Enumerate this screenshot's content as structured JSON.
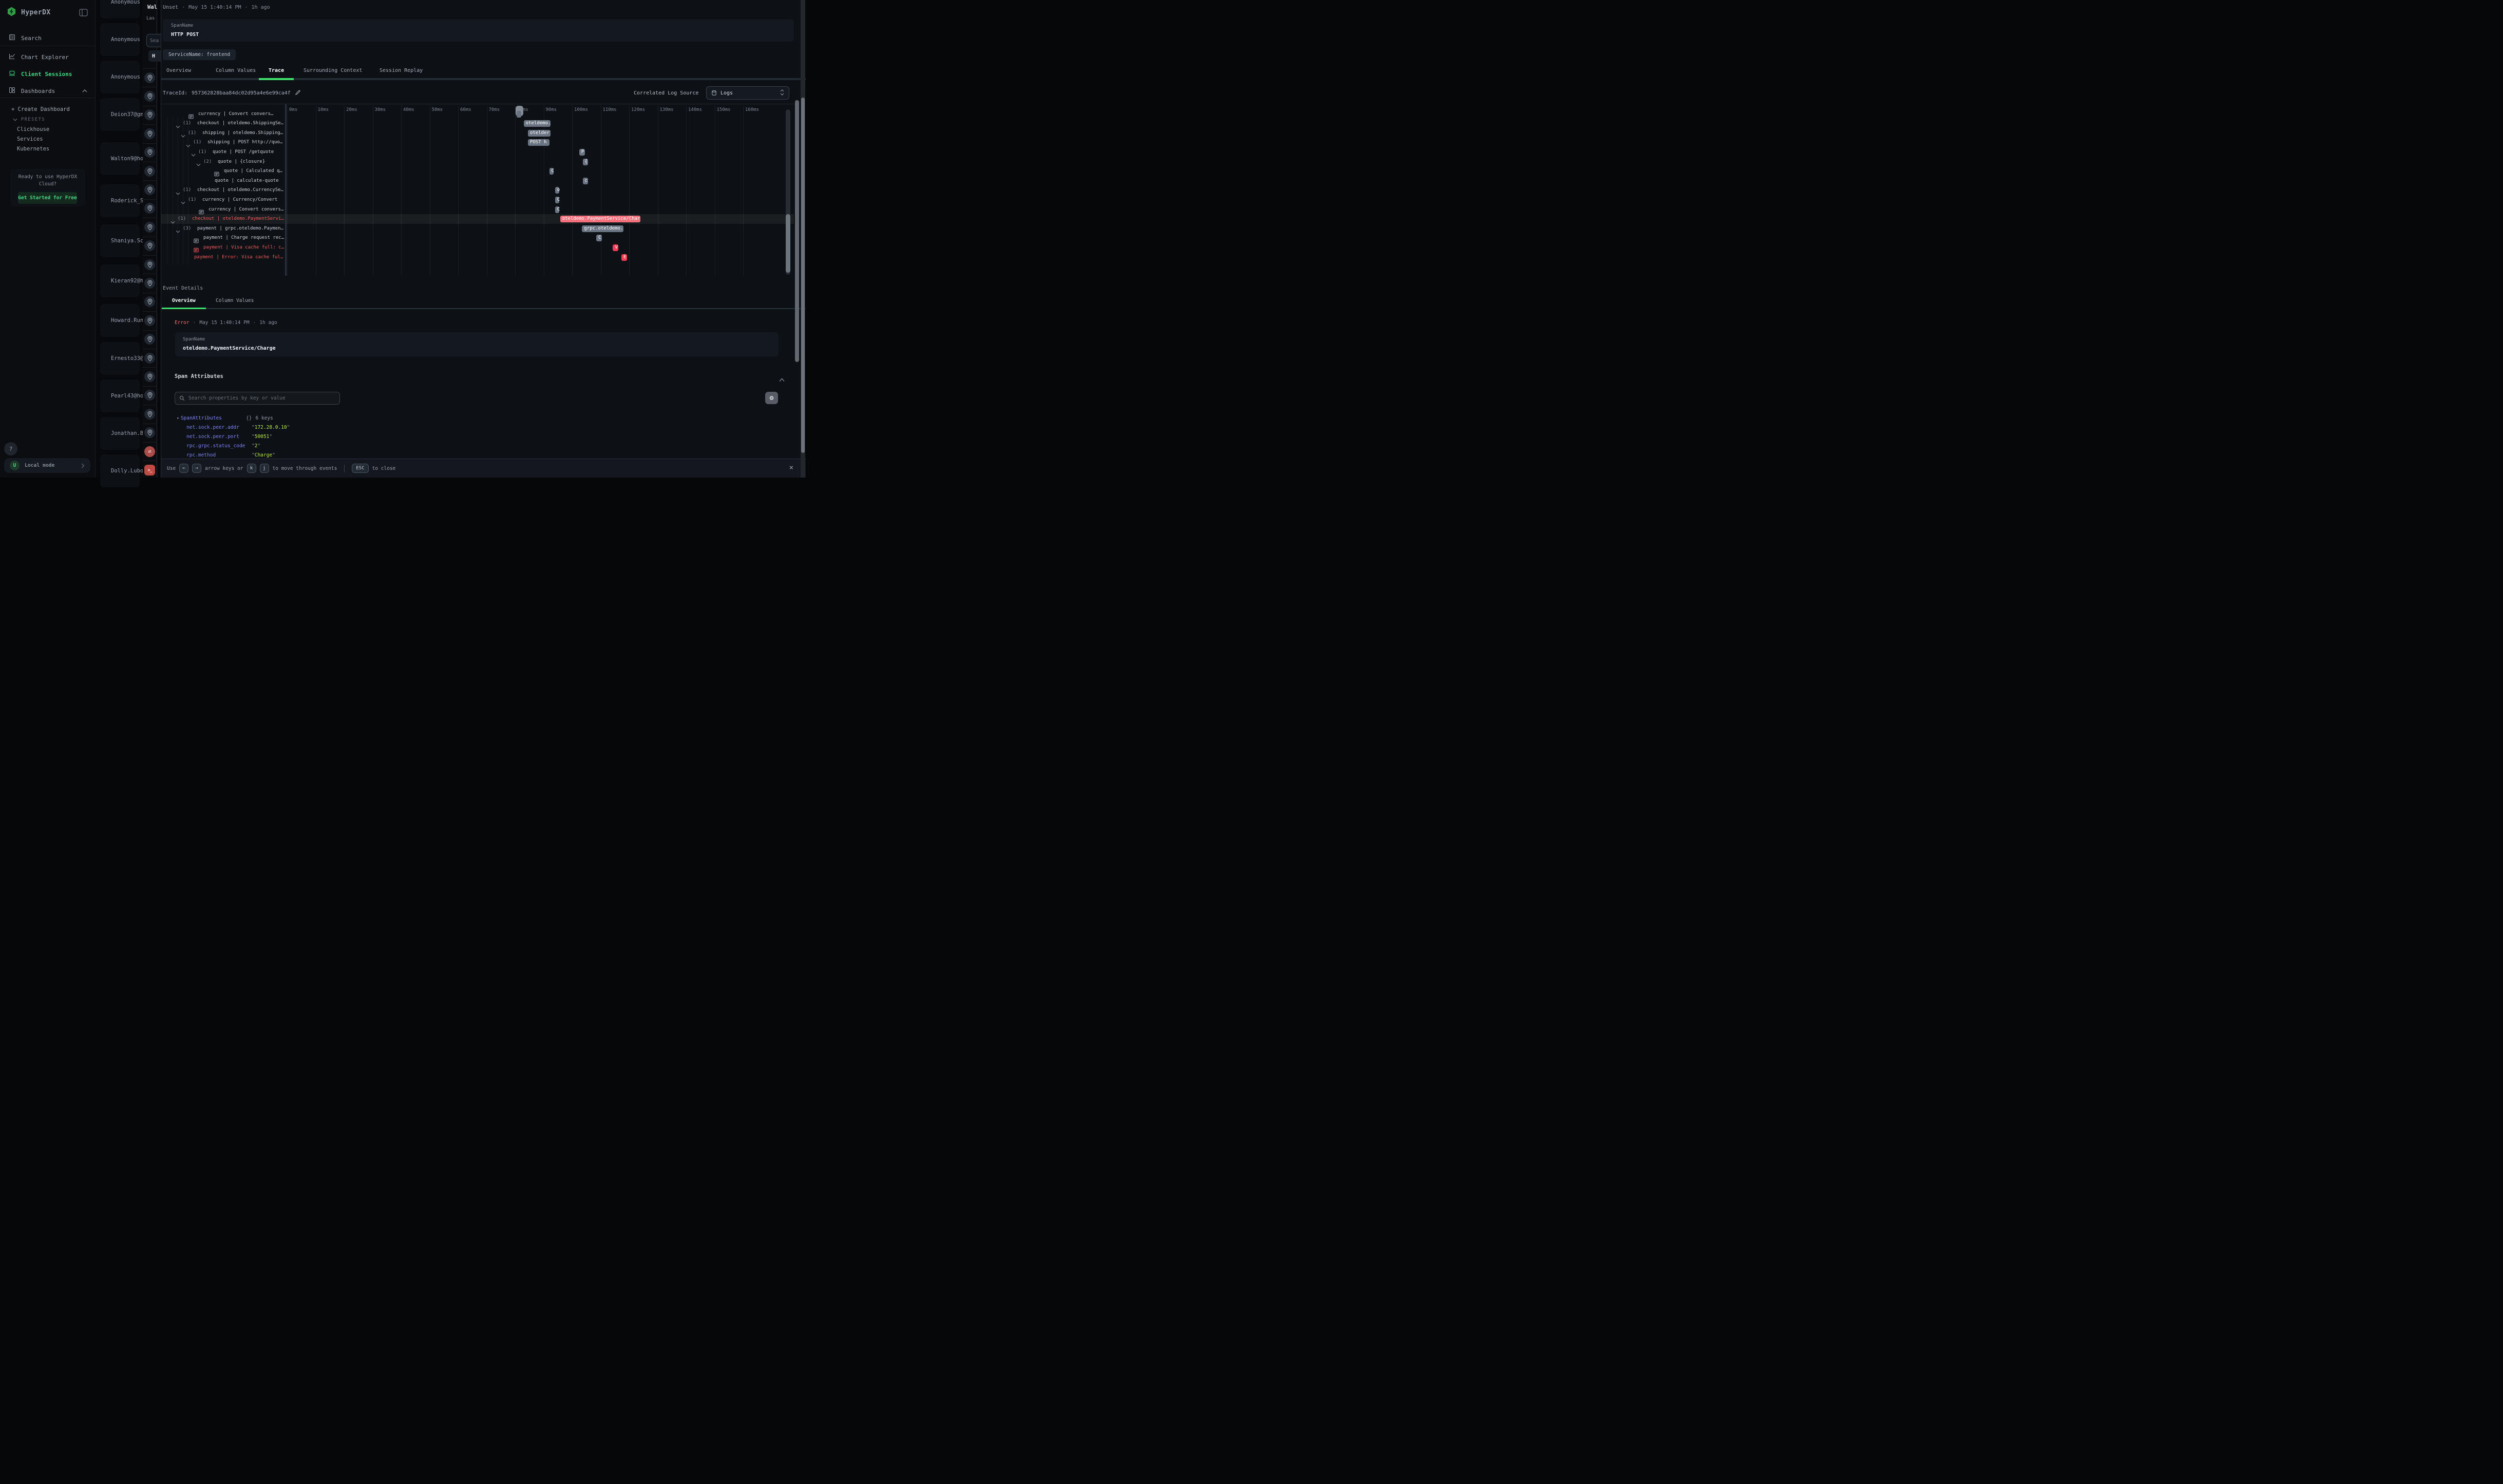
{
  "colors": {
    "accent_green": "#3ddc85",
    "tab_green": "#3fe06f",
    "error_red": "#ee5c5c",
    "bar_gray": "#6b7482",
    "bar_red": "#f23b55",
    "bar_red_light": "#f8707c",
    "key_purple": "#7d81f6",
    "value_lime": "#b9e84a"
  },
  "sidebar": {
    "brand": "HyperDX",
    "nav": [
      {
        "label": "Search",
        "icon": "notebook-icon",
        "active": false
      },
      {
        "label": "Chart Explorer",
        "icon": "chart-icon",
        "active": false
      },
      {
        "label": "Client Sessions",
        "icon": "laptop-icon",
        "active": true
      },
      {
        "label": "Dashboards",
        "icon": "grid-icon",
        "active": false,
        "caret": "up"
      }
    ],
    "create_dashboard": "+ Create Dashboard",
    "presets_label": "PRESETS",
    "presets": [
      "Clickhouse",
      "Services",
      "Kubernetes"
    ],
    "cloud_promo": {
      "line1": "Ready to use HyperDX",
      "line2": "Cloud?",
      "cta": "Get Started for Free"
    },
    "help": "?",
    "user_initial": "U",
    "mode": "Local mode"
  },
  "sessions": {
    "items": [
      "Anonymous",
      "Anonymous",
      "Anonymous",
      "Deion37@gm",
      "Walton9@ho",
      "Roderick_S",
      "Shaniya.Sc",
      "Kieran92@h",
      "Howard.Run",
      "Ernesto33@",
      "Pearl43@ho",
      "Jonathan.B",
      "Dolly.Lubo"
    ]
  },
  "peek": {
    "title": "Wal",
    "subtitle": "Las",
    "search_placeholder": "Sea",
    "button": "H"
  },
  "rail": {
    "pin_count": 20,
    "alerts": [
      {
        "icon": "swap-icon",
        "glyph": "⇄"
      },
      {
        "icon": "terminal-icon",
        "glyph": ">_"
      }
    ]
  },
  "panel": {
    "header": {
      "status": "Unset",
      "sep": "·",
      "time": "May 15 1:40:14 PM",
      "ago": "1h ago"
    },
    "span_card": {
      "label": "SpanName",
      "value": "HTTP POST"
    },
    "service_chip": "ServiceName: frontend",
    "tabs": [
      {
        "label": "Overview",
        "active": false
      },
      {
        "label": "Column Values",
        "active": false
      },
      {
        "label": "Trace",
        "active": true
      },
      {
        "label": "Surrounding Context",
        "active": false
      },
      {
        "label": "Session Replay",
        "active": false
      }
    ],
    "trace_id_label": "TraceId:",
    "trace_id": "957362828baa84dc02d95a4e6e99ca4f",
    "correlated_label": "Correlated Log Source",
    "log_source": "Logs",
    "waterfall": {
      "axis": [
        "0ms",
        "10ms",
        "20ms",
        "30ms",
        "40ms",
        "50ms",
        "60ms",
        "70ms",
        "80ms",
        "90ms",
        "100ms",
        "110ms",
        "120ms",
        "130ms",
        "140ms",
        "150ms",
        "160ms"
      ],
      "rows": [
        {
          "depth": 1,
          "kind": "event",
          "label": "currency | Convert convers…",
          "red": false,
          "bar": {
            "start": 80.5,
            "end": 82.1,
            "label": "",
            "color": "gray"
          }
        },
        {
          "depth": 1,
          "kind": "expand",
          "count": "(1)",
          "label": "checkout | oteldemo.ShippingSe…",
          "red": false,
          "bar": {
            "start": 83,
            "end": 92.5,
            "label": "oteldemo.",
            "color": "gray"
          }
        },
        {
          "depth": 2,
          "kind": "expand",
          "count": "(1)",
          "label": "shipping | oteldemo.Shipping…",
          "red": false,
          "bar": {
            "start": 84.5,
            "end": 92.5,
            "label": "otelder",
            "color": "gray"
          }
        },
        {
          "depth": 3,
          "kind": "expand",
          "count": "(1)",
          "label": "shipping | POST http://quo…",
          "red": false,
          "bar": {
            "start": 84.5,
            "end": 92,
            "label": "POST h",
            "color": "gray"
          }
        },
        {
          "depth": 4,
          "kind": "expand",
          "count": "(1)",
          "label": "quote | POST /getquote",
          "red": false,
          "bar": {
            "start": 102.5,
            "end": 104.5,
            "label": "P",
            "color": "gray"
          }
        },
        {
          "depth": 5,
          "kind": "expand",
          "count": "(2)",
          "label": "quote | {closure}",
          "red": false,
          "bar": {
            "start": 103.7,
            "end": 105.5,
            "label": "{",
            "color": "gray"
          }
        },
        {
          "depth": 6,
          "kind": "event",
          "label": "quote | Calculated q…",
          "red": false,
          "bar": {
            "start": 92,
            "end": 93.5,
            "label": "C",
            "color": "gray"
          }
        },
        {
          "depth": 6,
          "kind": "plain",
          "label": "quote | calculate-quote",
          "red": false,
          "bar": {
            "start": 103.7,
            "end": 105.5,
            "label": "c",
            "color": "gray"
          }
        },
        {
          "depth": 1,
          "kind": "expand",
          "count": "(1)",
          "label": "checkout | oteldemo.CurrencySe…",
          "red": false,
          "bar": {
            "start": 94,
            "end": 95.5,
            "label": "o",
            "color": "gray"
          }
        },
        {
          "depth": 2,
          "kind": "expand",
          "count": "(1)",
          "label": "currency | Currency/Convert",
          "red": false,
          "bar": {
            "start": 94,
            "end": 95.5,
            "label": "C",
            "color": "gray"
          }
        },
        {
          "depth": 3,
          "kind": "event",
          "label": "currency | Convert convers…",
          "red": false,
          "bar": {
            "start": 94,
            "end": 95.5,
            "label": "C",
            "color": "gray"
          }
        },
        {
          "depth": 0,
          "kind": "expand",
          "count": "(1)",
          "label": "checkout | oteldemo.PaymentServi…",
          "red": true,
          "highlighted": true,
          "bar": {
            "start": 95.8,
            "end": 124,
            "label": "oteldemo.PaymentService/Char",
            "color": "redlight"
          }
        },
        {
          "depth": 1,
          "kind": "expand",
          "count": "(3)",
          "label": "payment | grpc.oteldemo.Paymen…",
          "red": false,
          "bar": {
            "start": 103.5,
            "end": 118,
            "label": "grpc.oteldemo.",
            "color": "gray"
          }
        },
        {
          "depth": 2,
          "kind": "event",
          "label": "payment | Charge request rec…",
          "red": false,
          "bar": {
            "start": 108.5,
            "end": 110.5,
            "label": "C",
            "color": "gray"
          }
        },
        {
          "depth": 2,
          "kind": "event",
          "label": "payment | Visa cache full: c…",
          "red": true,
          "bar": {
            "start": 114.3,
            "end": 116.2,
            "label": "V",
            "color": "red"
          }
        },
        {
          "depth": 2,
          "kind": "plain",
          "label": "payment | Error: Visa cache ful…",
          "red": true,
          "bar": {
            "start": 117.3,
            "end": 119.2,
            "label": "E",
            "color": "red"
          }
        }
      ]
    },
    "event_details": {
      "title": "Event Details",
      "tabs": [
        {
          "label": "Overview",
          "active": true
        },
        {
          "label": "Column Values",
          "active": false
        }
      ],
      "status_line": {
        "status": "Error",
        "sep": "·",
        "time": "May 15 1:40:14 PM",
        "ago": "1h ago"
      },
      "card": {
        "label": "SpanName",
        "value": "oteldemo.PaymentService/Charge"
      },
      "span_attributes": {
        "title": "Span Attributes",
        "search_placeholder": "Search properties by key or value",
        "root": "SpanAttributes",
        "braces": "{}",
        "badge": "6 keys",
        "rows": [
          {
            "key": "net.sock.peer.addr",
            "value": "\"172.28.0.10\""
          },
          {
            "key": "net.sock.peer.port",
            "value": "\"50051\""
          },
          {
            "key": "rpc.grpc.status_code",
            "value": "\"2\""
          },
          {
            "key": "rpc.method",
            "value": "\"Charge\""
          }
        ]
      }
    },
    "footer": {
      "use": "Use",
      "arrows": [
        "←",
        "→"
      ],
      "or_text": "arrow keys or",
      "keys": [
        "k",
        "j"
      ],
      "move_text": "to move through events",
      "esc": "ESC",
      "close_text": "to close",
      "close_glyph": "×"
    }
  }
}
